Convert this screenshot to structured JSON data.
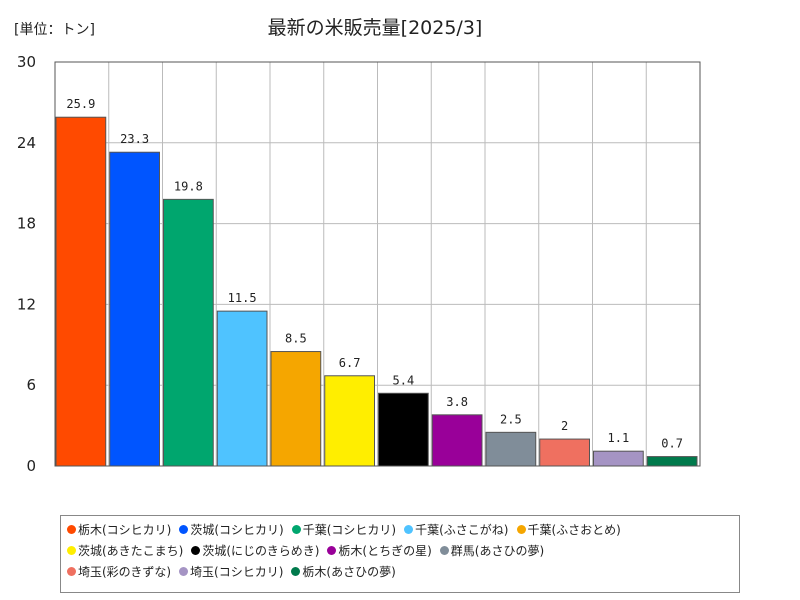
{
  "chart_data": {
    "type": "bar",
    "title": "最新の米販売量[2025/3]",
    "unit_label": "[単位：トン]",
    "ylim": [
      0,
      30
    ],
    "yticks": [
      0,
      6,
      12,
      18,
      24,
      30
    ],
    "grid": true,
    "legend_position": "bottom",
    "categories": [
      "栃木(コシヒカリ)",
      "茨城(コシヒカリ)",
      "千葉(コシヒカリ)",
      "千葉(ふさこがね)",
      "千葉(ふさおとめ)",
      "茨城(あきたこまち)",
      "茨城(にじのきらめき)",
      "栃木(とちぎの星)",
      "群馬(あさひの夢)",
      "埼玉(彩のきずな)",
      "埼玉(コシヒカリ)",
      "栃木(あさひの夢)"
    ],
    "values": [
      25.9,
      23.3,
      19.8,
      11.5,
      8.5,
      6.7,
      5.4,
      3.8,
      2.5,
      2,
      1.1,
      0.7
    ],
    "value_labels": [
      "25.9",
      "23.3",
      "19.8",
      "11.5",
      "8.5",
      "6.7",
      "5.4",
      "3.8",
      "2.5",
      "2",
      "1.1",
      "0.7"
    ],
    "colors": [
      "#ff4a00",
      "#0055ff",
      "#00a66e",
      "#4fc3ff",
      "#f5a600",
      "#ffee00",
      "#000000",
      "#990099",
      "#808d99",
      "#ef7060",
      "#a594c4",
      "#007a4c"
    ]
  }
}
